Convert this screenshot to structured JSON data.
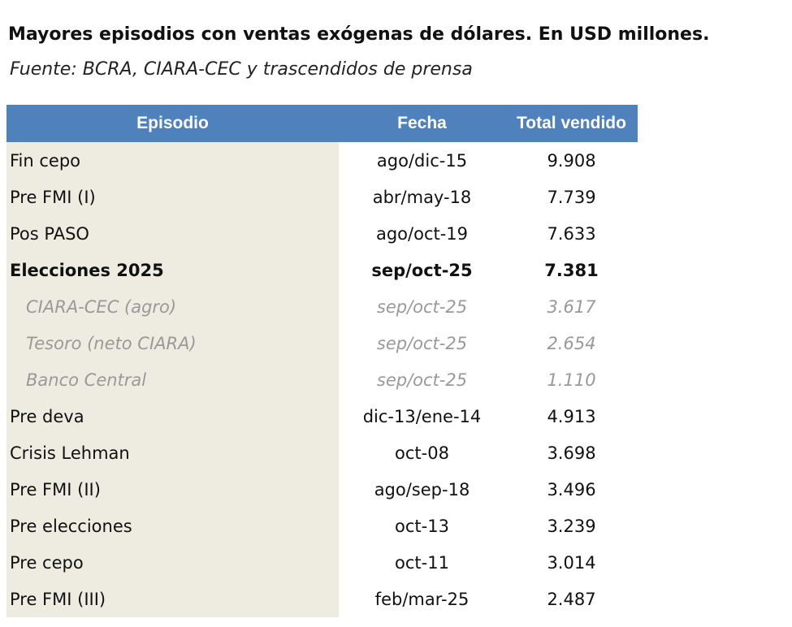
{
  "title": "Mayores episodios con ventas exógenas de dólares. En USD millones.",
  "source": "Fuente: BCRA, CIARA-CEC y trascendidos de prensa",
  "headers": [
    "Episodio",
    "Fecha",
    "Total vendido"
  ],
  "header_color": "#4f81bd",
  "rows": [
    {
      "episodio": "Fin cepo",
      "fecha": "ago/dic-15",
      "total": "9.908",
      "style": "normal"
    },
    {
      "episodio": "Pre FMI (I)",
      "fecha": "abr/may-18",
      "total": "7.739",
      "style": "normal"
    },
    {
      "episodio": "Pos PASO",
      "fecha": "ago/oct-19",
      "total": "7.633",
      "style": "normal"
    },
    {
      "episodio": "Elecciones 2025",
      "fecha": "sep/oct-25",
      "total": "7.381",
      "style": "bold"
    },
    {
      "episodio": "CIARA-CEC (agro)",
      "fecha": "sep/oct-25",
      "total": "3.617",
      "style": "sub"
    },
    {
      "episodio": "Tesoro (neto CIARA)",
      "fecha": "sep/oct-25",
      "total": "2.654",
      "style": "sub"
    },
    {
      "episodio": "Banco Central",
      "fecha": "sep/oct-25",
      "total": "1.110",
      "style": "sub"
    },
    {
      "episodio": "Pre deva",
      "fecha": "dic-13/ene-14",
      "total": "4.913",
      "style": "normal"
    },
    {
      "episodio": "Crisis Lehman",
      "fecha": "oct-08",
      "total": "3.698",
      "style": "normal"
    },
    {
      "episodio": "Pre FMI (II)",
      "fecha": "ago/sep-18",
      "total": "3.496",
      "style": "normal"
    },
    {
      "episodio": "Pre elecciones",
      "fecha": "oct-13",
      "total": "3.239",
      "style": "normal"
    },
    {
      "episodio": "Pre cepo",
      "fecha": "oct-11",
      "total": "3.014",
      "style": "normal"
    },
    {
      "episodio": "Pre FMI (III)",
      "fecha": "feb/mar-25",
      "total": "2.487",
      "style": "normal"
    }
  ]
}
